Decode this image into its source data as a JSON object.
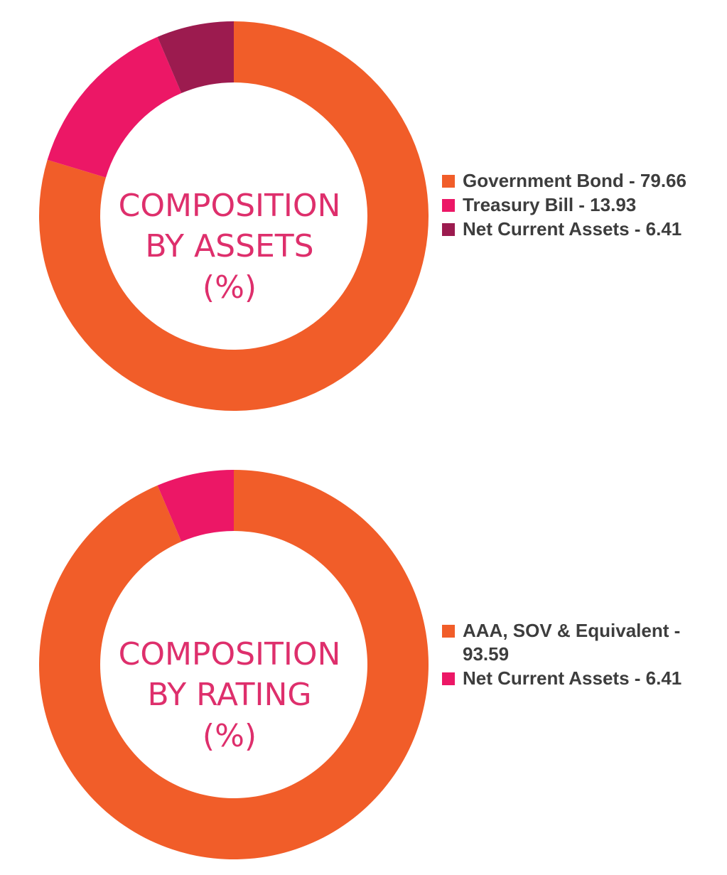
{
  "chart_data": [
    {
      "type": "pie",
      "donut": true,
      "center_title": [
        "COMPOSITION",
        "BY ASSETS",
        "(%)"
      ],
      "slices": [
        {
          "name": "Government Bond",
          "value": 79.66,
          "color": "#f15d29"
        },
        {
          "name": "Treasury Bill",
          "value": 13.93,
          "color": "#ec1766"
        },
        {
          "name": "Net Current Assets",
          "value": 6.41,
          "color": "#9c1b4f"
        }
      ],
      "legend": {
        "placement": "right",
        "items": [
          "Government Bond - 79.66",
          "Treasury Bill - 13.93",
          "Net Current Assets - 6.41"
        ]
      }
    },
    {
      "type": "pie",
      "donut": true,
      "center_title": [
        "COMPOSITION",
        "BY RATING",
        "(%)"
      ],
      "slices": [
        {
          "name": "AAA, SOV & Equivalent",
          "value": 93.59,
          "color": "#f15d29"
        },
        {
          "name": "Net Current Assets",
          "value": 6.41,
          "color": "#ec1766"
        }
      ],
      "legend": {
        "placement": "right",
        "items": [
          "AAA, SOV & Equivalent - 93.59",
          "Net Current Assets - 6.41"
        ]
      }
    }
  ]
}
